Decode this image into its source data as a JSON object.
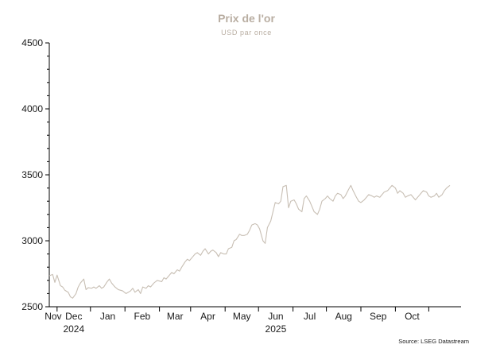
{
  "chart_data": {
    "type": "line",
    "title": "Prix de l'or",
    "subtitle": "USD par once",
    "source": "Source: LSEG Datastream",
    "ylim": [
      2500,
      4500
    ],
    "yticks": [
      2500,
      3000,
      3500,
      4000,
      4500
    ],
    "ytick_labels": [
      "2500",
      "3000",
      "3500",
      "4000",
      "4500"
    ],
    "x_range": [
      "2024-10-25",
      "2025-10-30"
    ],
    "month_labels": [
      "Nov",
      "Dec",
      "Jan",
      "Feb",
      "Mar",
      "Apr",
      "May",
      "Jun",
      "Jul",
      "Aug",
      "Sep",
      "Oct"
    ],
    "year_labels": [
      {
        "label": "2024",
        "month": "2024-11"
      },
      {
        "label": "2025",
        "month": "2025-05"
      }
    ],
    "grid": false,
    "legend": "none",
    "line_color": "#c8bfb4",
    "series": [
      {
        "name": "",
        "points": [
          [
            "2024-10-25",
            2735
          ],
          [
            "2024-10-28",
            2745
          ],
          [
            "2024-10-30",
            2685
          ],
          [
            "2024-11-01",
            2740
          ],
          [
            "2024-11-04",
            2660
          ],
          [
            "2024-11-06",
            2650
          ],
          [
            "2024-11-08",
            2625
          ],
          [
            "2024-11-11",
            2610
          ],
          [
            "2024-11-13",
            2575
          ],
          [
            "2024-11-15",
            2565
          ],
          [
            "2024-11-18",
            2600
          ],
          [
            "2024-11-20",
            2650
          ],
          [
            "2024-11-22",
            2680
          ],
          [
            "2024-11-25",
            2710
          ],
          [
            "2024-11-27",
            2630
          ],
          [
            "2024-11-29",
            2645
          ],
          [
            "2024-12-02",
            2640
          ],
          [
            "2024-12-04",
            2650
          ],
          [
            "2024-12-06",
            2640
          ],
          [
            "2024-12-09",
            2660
          ],
          [
            "2024-12-11",
            2640
          ],
          [
            "2024-12-13",
            2650
          ],
          [
            "2024-12-16",
            2690
          ],
          [
            "2024-12-18",
            2710
          ],
          [
            "2024-12-20",
            2680
          ],
          [
            "2024-12-23",
            2650
          ],
          [
            "2024-12-26",
            2630
          ],
          [
            "2024-12-30",
            2620
          ],
          [
            "2025-01-02",
            2600
          ],
          [
            "2025-01-06",
            2620
          ],
          [
            "2025-01-08",
            2640
          ],
          [
            "2025-01-10",
            2610
          ],
          [
            "2025-01-13",
            2630
          ],
          [
            "2025-01-15",
            2600
          ],
          [
            "2025-01-17",
            2650
          ],
          [
            "2025-01-20",
            2640
          ],
          [
            "2025-01-22",
            2660
          ],
          [
            "2025-01-24",
            2650
          ],
          [
            "2025-01-27",
            2680
          ],
          [
            "2025-01-30",
            2700
          ],
          [
            "2025-02-03",
            2690
          ],
          [
            "2025-02-05",
            2720
          ],
          [
            "2025-02-07",
            2710
          ],
          [
            "2025-02-10",
            2740
          ],
          [
            "2025-02-12",
            2760
          ],
          [
            "2025-02-14",
            2750
          ],
          [
            "2025-02-17",
            2780
          ],
          [
            "2025-02-19",
            2770
          ],
          [
            "2025-02-21",
            2800
          ],
          [
            "2025-02-24",
            2840
          ],
          [
            "2025-02-26",
            2860
          ],
          [
            "2025-02-28",
            2850
          ],
          [
            "2025-03-03",
            2880
          ],
          [
            "2025-03-05",
            2900
          ],
          [
            "2025-03-07",
            2910
          ],
          [
            "2025-03-10",
            2890
          ],
          [
            "2025-03-12",
            2920
          ],
          [
            "2025-03-14",
            2940
          ],
          [
            "2025-03-17",
            2900
          ],
          [
            "2025-03-19",
            2920
          ],
          [
            "2025-03-21",
            2930
          ],
          [
            "2025-03-24",
            2910
          ],
          [
            "2025-03-26",
            2880
          ],
          [
            "2025-03-28",
            2910
          ],
          [
            "2025-03-31",
            2900
          ],
          [
            "2025-04-02",
            2900
          ],
          [
            "2025-04-04",
            2940
          ],
          [
            "2025-04-07",
            2950
          ],
          [
            "2025-04-09",
            3000
          ],
          [
            "2025-04-11",
            3010
          ],
          [
            "2025-04-14",
            3050
          ],
          [
            "2025-04-16",
            3040
          ],
          [
            "2025-04-18",
            3040
          ],
          [
            "2025-04-21",
            3050
          ],
          [
            "2025-04-23",
            3080
          ],
          [
            "2025-04-25",
            3120
          ],
          [
            "2025-04-28",
            3130
          ],
          [
            "2025-04-30",
            3120
          ],
          [
            "2025-05-02",
            3090
          ],
          [
            "2025-05-05",
            3000
          ],
          [
            "2025-05-07",
            2980
          ],
          [
            "2025-05-09",
            3100
          ],
          [
            "2025-05-12",
            3150
          ],
          [
            "2025-05-14",
            3220
          ],
          [
            "2025-05-16",
            3290
          ],
          [
            "2025-05-19",
            3280
          ],
          [
            "2025-05-21",
            3300
          ],
          [
            "2025-05-23",
            3410
          ],
          [
            "2025-05-26",
            3420
          ],
          [
            "2025-05-28",
            3250
          ],
          [
            "2025-05-30",
            3300
          ],
          [
            "2025-06-02",
            3310
          ],
          [
            "2025-06-04",
            3280
          ],
          [
            "2025-06-06",
            3240
          ],
          [
            "2025-06-09",
            3220
          ],
          [
            "2025-06-11",
            3320
          ],
          [
            "2025-06-13",
            3340
          ],
          [
            "2025-06-16",
            3300
          ],
          [
            "2025-06-18",
            3260
          ],
          [
            "2025-06-20",
            3220
          ],
          [
            "2025-06-23",
            3200
          ],
          [
            "2025-06-25",
            3240
          ],
          [
            "2025-06-27",
            3300
          ],
          [
            "2025-06-30",
            3320
          ],
          [
            "2025-07-02",
            3340
          ],
          [
            "2025-07-04",
            3320
          ],
          [
            "2025-07-07",
            3300
          ],
          [
            "2025-07-09",
            3340
          ],
          [
            "2025-07-11",
            3360
          ],
          [
            "2025-07-14",
            3350
          ],
          [
            "2025-07-16",
            3320
          ],
          [
            "2025-07-18",
            3340
          ],
          [
            "2025-07-21",
            3390
          ],
          [
            "2025-07-23",
            3420
          ],
          [
            "2025-07-25",
            3380
          ],
          [
            "2025-07-28",
            3330
          ],
          [
            "2025-07-30",
            3300
          ],
          [
            "2025-08-01",
            3290
          ],
          [
            "2025-08-04",
            3310
          ],
          [
            "2025-08-06",
            3330
          ],
          [
            "2025-08-08",
            3350
          ],
          [
            "2025-08-11",
            3340
          ],
          [
            "2025-08-13",
            3330
          ],
          [
            "2025-08-15",
            3340
          ],
          [
            "2025-08-18",
            3330
          ],
          [
            "2025-08-20",
            3350
          ],
          [
            "2025-08-22",
            3370
          ],
          [
            "2025-08-25",
            3380
          ],
          [
            "2025-08-27",
            3400
          ],
          [
            "2025-08-29",
            3420
          ],
          [
            "2025-09-01",
            3400
          ],
          [
            "2025-09-03",
            3360
          ],
          [
            "2025-09-05",
            3380
          ],
          [
            "2025-09-08",
            3360
          ],
          [
            "2025-09-10",
            3330
          ],
          [
            "2025-09-12",
            3340
          ],
          [
            "2025-09-15",
            3350
          ],
          [
            "2025-09-17",
            3330
          ],
          [
            "2025-09-19",
            3310
          ],
          [
            "2025-09-22",
            3340
          ],
          [
            "2025-09-24",
            3360
          ],
          [
            "2025-09-26",
            3380
          ],
          [
            "2025-09-29",
            3370
          ],
          [
            "2025-10-01",
            3340
          ],
          [
            "2025-10-03",
            3330
          ],
          [
            "2025-10-06",
            3340
          ],
          [
            "2025-10-08",
            3360
          ],
          [
            "2025-10-10",
            3330
          ],
          [
            "2025-10-13",
            3350
          ],
          [
            "2025-10-15",
            3380
          ],
          [
            "2025-10-17",
            3400
          ],
          [
            "2025-10-20",
            3420
          ]
        ]
      }
    ]
  }
}
